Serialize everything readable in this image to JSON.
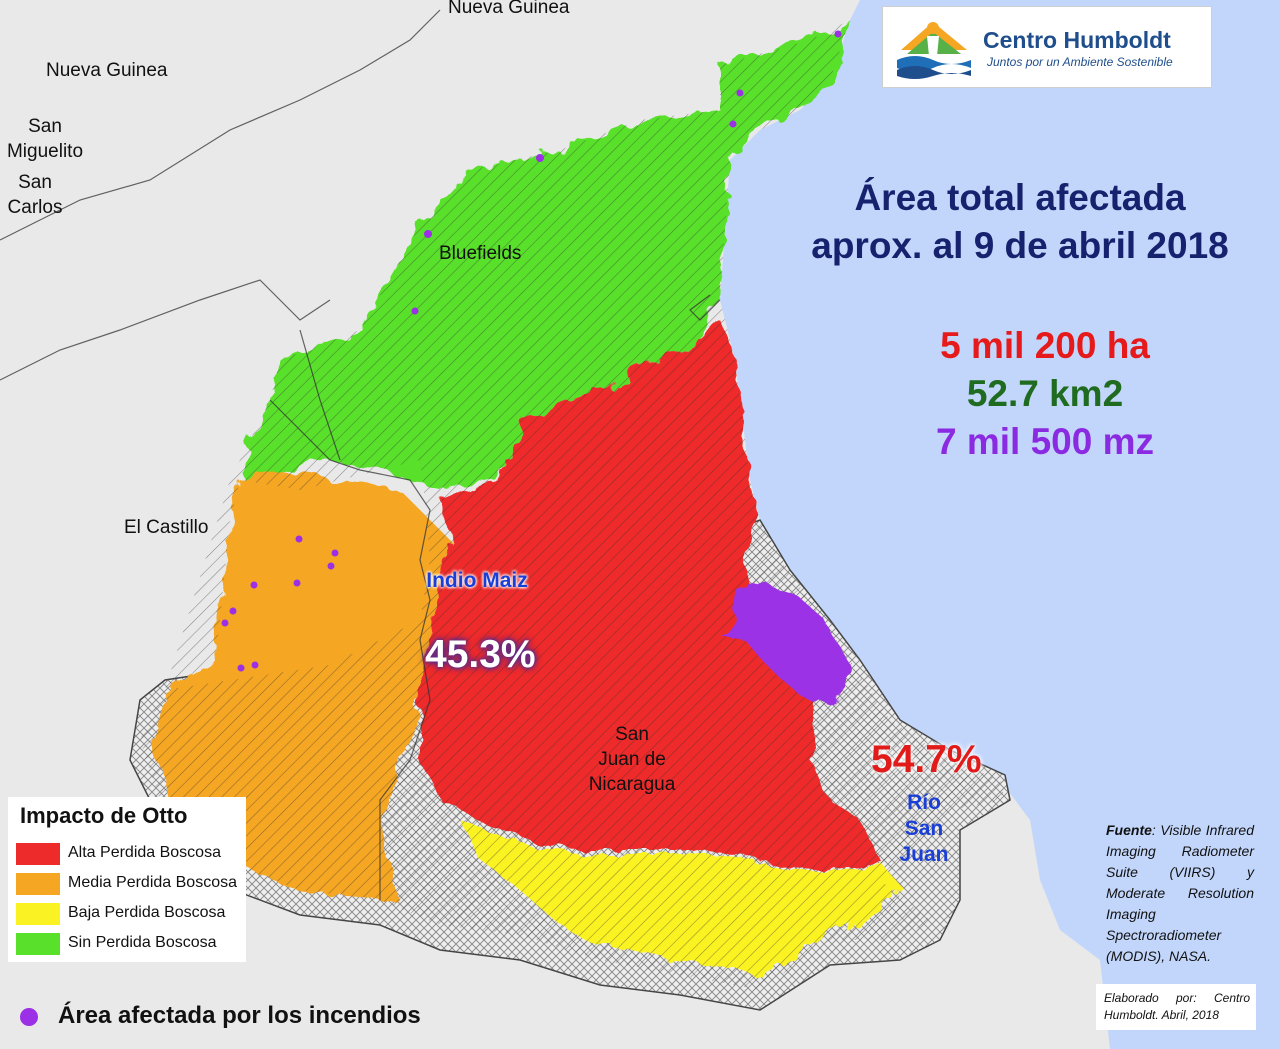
{
  "logo": {
    "title": "Centro Humboldt",
    "subtitle": "Juntos por un Ambiente Sostenible",
    "icon": "centro-humboldt-logo"
  },
  "headline": {
    "line1": "Área total afectada",
    "line2": "aprox. al 9 de abril 2018"
  },
  "stats": {
    "hectares": "5 mil 200 ha",
    "km2": "52.7 km2",
    "manzanas": "7 mil 500 mz",
    "colors": {
      "hectares": "#e61a1a",
      "km2": "#1f6b1f",
      "manzanas": "#8a2be2"
    }
  },
  "places": {
    "nueva_guinea_top": "Nueva Guinea",
    "nueva_guinea": "Nueva Guinea",
    "san_miguelito": "San\nMiguelito",
    "san_carlos": "San\nCarlos",
    "bluefields": "Bluefields",
    "el_castillo": "El Castillo",
    "san_juan_de_nicaragua": "San\nJuan de\nNicaragua"
  },
  "reserves": {
    "indio_maiz": "Indio Maiz",
    "rio_san_juan": "Río\nSan\nJuan"
  },
  "percentages": {
    "indio_maiz_pct": "45.3%",
    "rio_san_juan_pct": "54.7%"
  },
  "legend": {
    "title": "Impacto de Otto",
    "items": [
      {
        "label": "Alta Perdida Boscosa",
        "color": "#ee2b2b"
      },
      {
        "label": "Media Perdida Boscosa",
        "color": "#f5a623"
      },
      {
        "label": "Baja Perdida Boscosa",
        "color": "#fbf224"
      },
      {
        "label": "Sin Perdida Boscosa",
        "color": "#58e02a"
      }
    ]
  },
  "fire_legend": {
    "label": "Área afectada por los incendios",
    "color": "#9b30e6"
  },
  "source": {
    "label": "Fuente",
    "text": ": Visible Infrared Imaging Radiometer Suite (VIIRS) y Moderate Resolution Imaging Spectroradiometer (MODIS), NASA."
  },
  "credit": "Elaborado por: Centro Humboldt. Abril, 2018",
  "map_colors": {
    "ocean": "#c2d6fb",
    "land": "#e8e8e8",
    "no_data": "#e6e6e6"
  }
}
